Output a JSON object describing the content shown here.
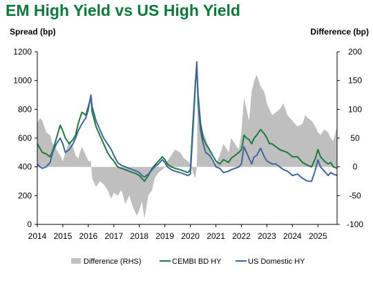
{
  "chart_data": {
    "type": "line",
    "title": "EM High Yield vs US High Yield",
    "ylabel_left": "Spread (bp)",
    "ylabel_right": "Difference (bp)",
    "ylim_left": [
      0,
      1200
    ],
    "ylim_right": [
      -100,
      200
    ],
    "left_ticks": [
      0,
      200,
      400,
      600,
      800,
      1000,
      1200
    ],
    "right_ticks": [
      -100,
      -50,
      0,
      50,
      100,
      150,
      200
    ],
    "xlim": [
      2014,
      2025.75
    ],
    "x_ticks": [
      "2014",
      "2015",
      "2016",
      "2017",
      "2018",
      "2019",
      "2020",
      "2021",
      "2022",
      "2023",
      "2024",
      "2025"
    ],
    "legend_position": "bottom",
    "colors": {
      "difference": "#bfbfbf",
      "cembi": "#1a7a3c",
      "us": "#3f64a0",
      "title": "#0b7a3b"
    },
    "series": [
      {
        "name": "Difference (RHS)",
        "type": "area",
        "axis": "right",
        "x": [
          2014.0,
          2014.1,
          2014.2,
          2014.35,
          2014.5,
          2014.6,
          2014.75,
          2014.9,
          2015.0,
          2015.1,
          2015.25,
          2015.4,
          2015.5,
          2015.6,
          2015.75,
          2015.9,
          2016.0,
          2016.1,
          2016.15,
          2016.3,
          2016.45,
          2016.6,
          2016.75,
          2016.9,
          2017.0,
          2017.15,
          2017.3,
          2017.45,
          2017.6,
          2017.75,
          2017.9,
          2018.0,
          2018.1,
          2018.2,
          2018.35,
          2018.5,
          2018.6,
          2018.75,
          2018.9,
          2019.0,
          2019.1,
          2019.25,
          2019.4,
          2019.6,
          2019.75,
          2019.9,
          2020.0,
          2020.1,
          2020.2,
          2020.25,
          2020.3,
          2020.4,
          2020.5,
          2020.6,
          2020.75,
          2020.9,
          2021.0,
          2021.15,
          2021.3,
          2021.5,
          2021.6,
          2021.75,
          2021.9,
          2022.0,
          2022.05,
          2022.1,
          2022.2,
          2022.3,
          2022.4,
          2022.5,
          2022.6,
          2022.75,
          2022.9,
          2023.0,
          2023.1,
          2023.2,
          2023.35,
          2023.5,
          2023.65,
          2023.8,
          2024.0,
          2024.2,
          2024.4,
          2024.5,
          2024.6,
          2024.75,
          2024.9,
          2025.0,
          2025.1,
          2025.25,
          2025.4,
          2025.5,
          2025.6,
          2025.75
        ],
        "values": [
          75,
          85,
          80,
          60,
          55,
          40,
          30,
          20,
          10,
          25,
          45,
          35,
          20,
          15,
          35,
          20,
          10,
          10,
          -20,
          -35,
          -25,
          -30,
          -40,
          -55,
          -45,
          -50,
          -40,
          -65,
          -50,
          -70,
          -85,
          -75,
          -60,
          -90,
          -50,
          -40,
          -20,
          -10,
          -5,
          0,
          10,
          20,
          30,
          25,
          15,
          10,
          5,
          -10,
          -20,
          0,
          150,
          80,
          60,
          50,
          30,
          10,
          5,
          20,
          40,
          25,
          50,
          40,
          30,
          60,
          90,
          120,
          100,
          80,
          130,
          150,
          160,
          140,
          130,
          110,
          100,
          90,
          95,
          100,
          110,
          90,
          80,
          70,
          75,
          90,
          85,
          80,
          70,
          60,
          55,
          65,
          60,
          50,
          45,
          70
        ]
      },
      {
        "name": "CEMBI BD HY",
        "type": "line",
        "axis": "left",
        "x": [
          2014.0,
          2014.1,
          2014.2,
          2014.35,
          2014.5,
          2014.6,
          2014.75,
          2014.9,
          2015.0,
          2015.1,
          2015.25,
          2015.4,
          2015.5,
          2015.6,
          2015.75,
          2015.9,
          2016.0,
          2016.1,
          2016.15,
          2016.3,
          2016.45,
          2016.6,
          2016.75,
          2016.9,
          2017.0,
          2017.15,
          2017.3,
          2017.45,
          2017.6,
          2017.75,
          2017.9,
          2018.0,
          2018.1,
          2018.2,
          2018.35,
          2018.5,
          2018.6,
          2018.75,
          2018.9,
          2019.0,
          2019.1,
          2019.25,
          2019.4,
          2019.6,
          2019.75,
          2019.9,
          2020.0,
          2020.1,
          2020.2,
          2020.25,
          2020.3,
          2020.4,
          2020.5,
          2020.6,
          2020.75,
          2020.9,
          2021.0,
          2021.15,
          2021.3,
          2021.5,
          2021.6,
          2021.75,
          2021.9,
          2022.0,
          2022.05,
          2022.1,
          2022.2,
          2022.3,
          2022.4,
          2022.5,
          2022.6,
          2022.75,
          2022.9,
          2023.0,
          2023.1,
          2023.2,
          2023.35,
          2023.5,
          2023.65,
          2023.8,
          2024.0,
          2024.2,
          2024.4,
          2024.5,
          2024.6,
          2024.75,
          2024.9,
          2025.0,
          2025.1,
          2025.25,
          2025.4,
          2025.5,
          2025.6,
          2025.75
        ],
        "values": [
          560,
          530,
          500,
          490,
          470,
          510,
          600,
          690,
          650,
          600,
          560,
          590,
          620,
          700,
          780,
          760,
          820,
          890,
          780,
          680,
          620,
          560,
          500,
          460,
          440,
          400,
          390,
          380,
          370,
          360,
          350,
          340,
          320,
          300,
          340,
          390,
          410,
          440,
          470,
          450,
          420,
          400,
          390,
          380,
          370,
          360,
          380,
          700,
          1000,
          1100,
          900,
          700,
          600,
          560,
          520,
          470,
          440,
          420,
          450,
          430,
          460,
          480,
          500,
          520,
          560,
          620,
          600,
          590,
          560,
          600,
          620,
          660,
          630,
          600,
          560,
          560,
          540,
          520,
          510,
          500,
          470,
          470,
          430,
          420,
          410,
          400,
          460,
          520,
          470,
          440,
          420,
          430,
          400,
          390
        ]
      },
      {
        "name": "US Domestic HY",
        "type": "line",
        "axis": "left",
        "x": [
          2014.0,
          2014.1,
          2014.2,
          2014.35,
          2014.5,
          2014.6,
          2014.75,
          2014.9,
          2015.0,
          2015.1,
          2015.25,
          2015.4,
          2015.5,
          2015.6,
          2015.75,
          2015.9,
          2016.0,
          2016.1,
          2016.15,
          2016.3,
          2016.45,
          2016.6,
          2016.75,
          2016.9,
          2017.0,
          2017.15,
          2017.3,
          2017.45,
          2017.6,
          2017.75,
          2017.9,
          2018.0,
          2018.1,
          2018.2,
          2018.35,
          2018.5,
          2018.6,
          2018.75,
          2018.9,
          2019.0,
          2019.1,
          2019.25,
          2019.4,
          2019.6,
          2019.75,
          2019.9,
          2020.0,
          2020.1,
          2020.2,
          2020.25,
          2020.3,
          2020.4,
          2020.5,
          2020.6,
          2020.75,
          2020.9,
          2021.0,
          2021.15,
          2021.3,
          2021.5,
          2021.6,
          2021.75,
          2021.9,
          2022.0,
          2022.05,
          2022.1,
          2022.2,
          2022.3,
          2022.4,
          2022.5,
          2022.6,
          2022.75,
          2022.9,
          2023.0,
          2023.1,
          2023.2,
          2023.35,
          2023.5,
          2023.65,
          2023.8,
          2024.0,
          2024.2,
          2024.4,
          2024.5,
          2024.6,
          2024.75,
          2024.9,
          2025.0,
          2025.1,
          2025.25,
          2025.4,
          2025.5,
          2025.6,
          2025.75
        ],
        "values": [
          420,
          400,
          390,
          400,
          430,
          500,
          560,
          600,
          560,
          500,
          520,
          560,
          600,
          650,
          700,
          740,
          800,
          900,
          820,
          720,
          660,
          600,
          560,
          520,
          480,
          430,
          410,
          400,
          390,
          380,
          370,
          360,
          340,
          330,
          350,
          380,
          400,
          420,
          450,
          430,
          400,
          380,
          370,
          360,
          350,
          340,
          350,
          650,
          980,
          1130,
          850,
          650,
          560,
          500,
          480,
          440,
          400,
          390,
          360,
          370,
          380,
          390,
          400,
          420,
          480,
          540,
          500,
          460,
          420,
          470,
          480,
          530,
          470,
          440,
          430,
          420,
          420,
          400,
          380,
          370,
          340,
          350,
          320,
          310,
          300,
          300,
          380,
          450,
          400,
          370,
          340,
          360,
          350,
          340
        ]
      }
    ]
  }
}
